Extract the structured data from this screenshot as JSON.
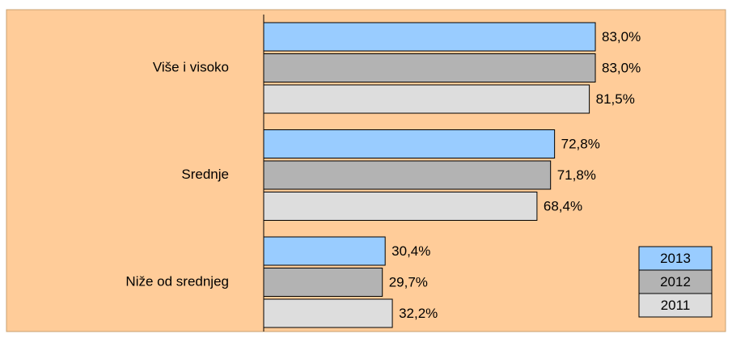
{
  "chart_data": {
    "type": "bar",
    "orientation": "horizontal",
    "categories": [
      "Više i visoko",
      "Srednje",
      "Niže od srednjeg"
    ],
    "xlim": [
      0,
      100
    ],
    "series": [
      {
        "name": "2013",
        "color": "#99ccff",
        "values": [
          83.0,
          72.8,
          30.4
        ],
        "value_labels": [
          "83,0%",
          "72,8%",
          "30,4%"
        ]
      },
      {
        "name": "2012",
        "color": "#b3b3b3",
        "values": [
          83.0,
          71.8,
          29.7
        ],
        "value_labels": [
          "83,0%",
          "71,8%",
          "29,7%"
        ]
      },
      {
        "name": "2011",
        "color": "#dddddd",
        "values": [
          81.5,
          68.4,
          32.2
        ],
        "value_labels": [
          "81,5%",
          "68,4%",
          "32,2%"
        ]
      }
    ],
    "legend": "bottom-right"
  }
}
